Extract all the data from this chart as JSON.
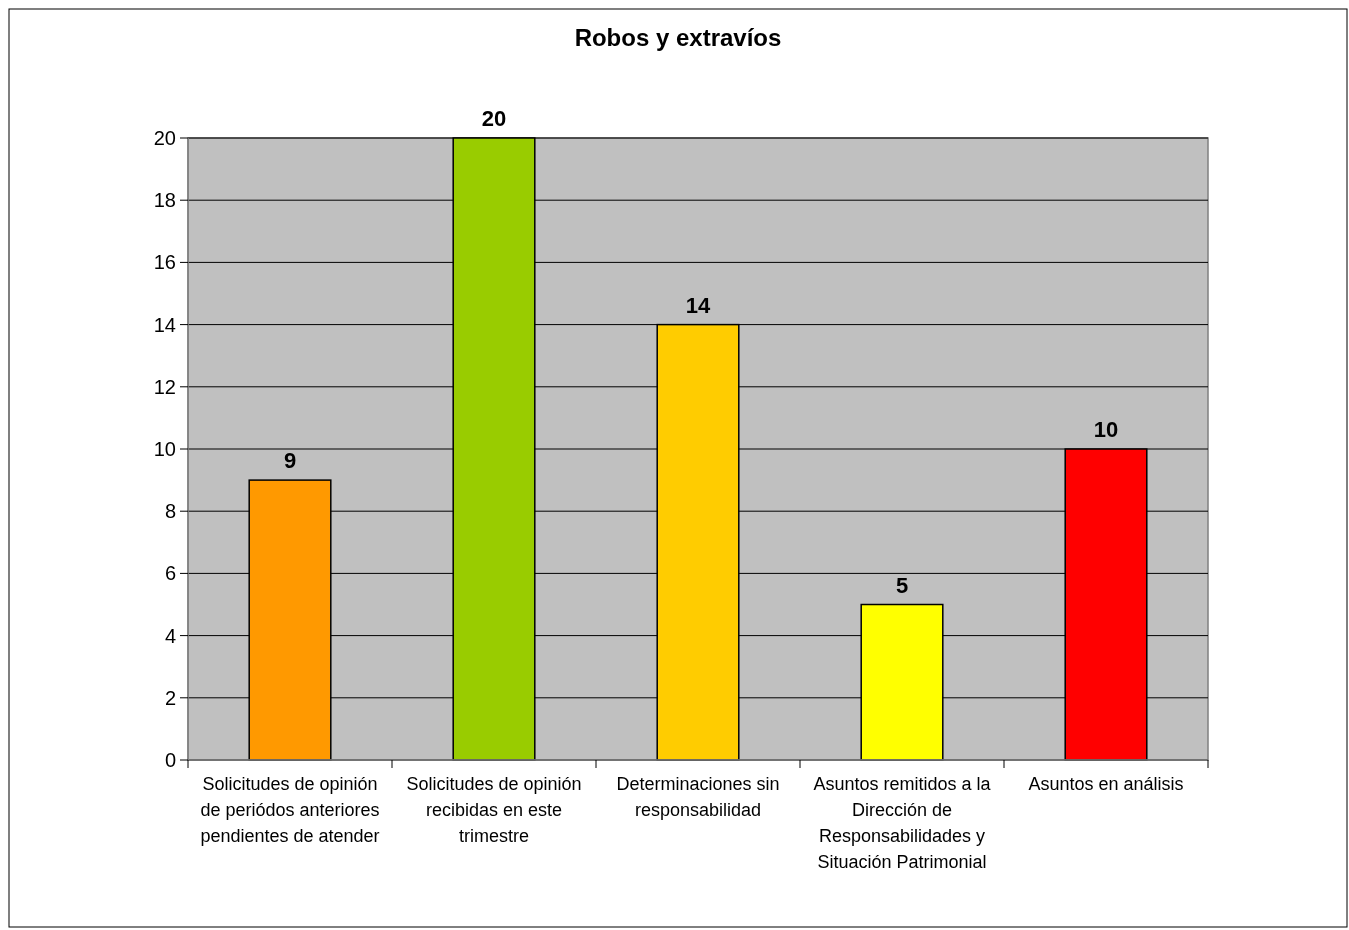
{
  "chart_data": {
    "type": "bar",
    "title": "Robos y extravíos",
    "categories": [
      "Solicitudes de opinión de periódos anteriores pendientes de atender",
      "Solicitudes de opinión recibidas en este trimestre",
      "Determinaciones sin responsabilidad",
      "Asuntos remitidos a la Dirección de Responsabilidades y Situación Patrimonial",
      "Asuntos en análisis"
    ],
    "values": [
      9,
      20,
      14,
      5,
      10
    ],
    "colors": [
      "#ff9900",
      "#99cc00",
      "#ffcc00",
      "#ffff00",
      "#ff0000"
    ],
    "ylim": [
      0,
      20
    ],
    "yticks": [
      0,
      2,
      4,
      6,
      8,
      10,
      12,
      14,
      16,
      18,
      20
    ],
    "grid": "y",
    "data_labels": true
  }
}
